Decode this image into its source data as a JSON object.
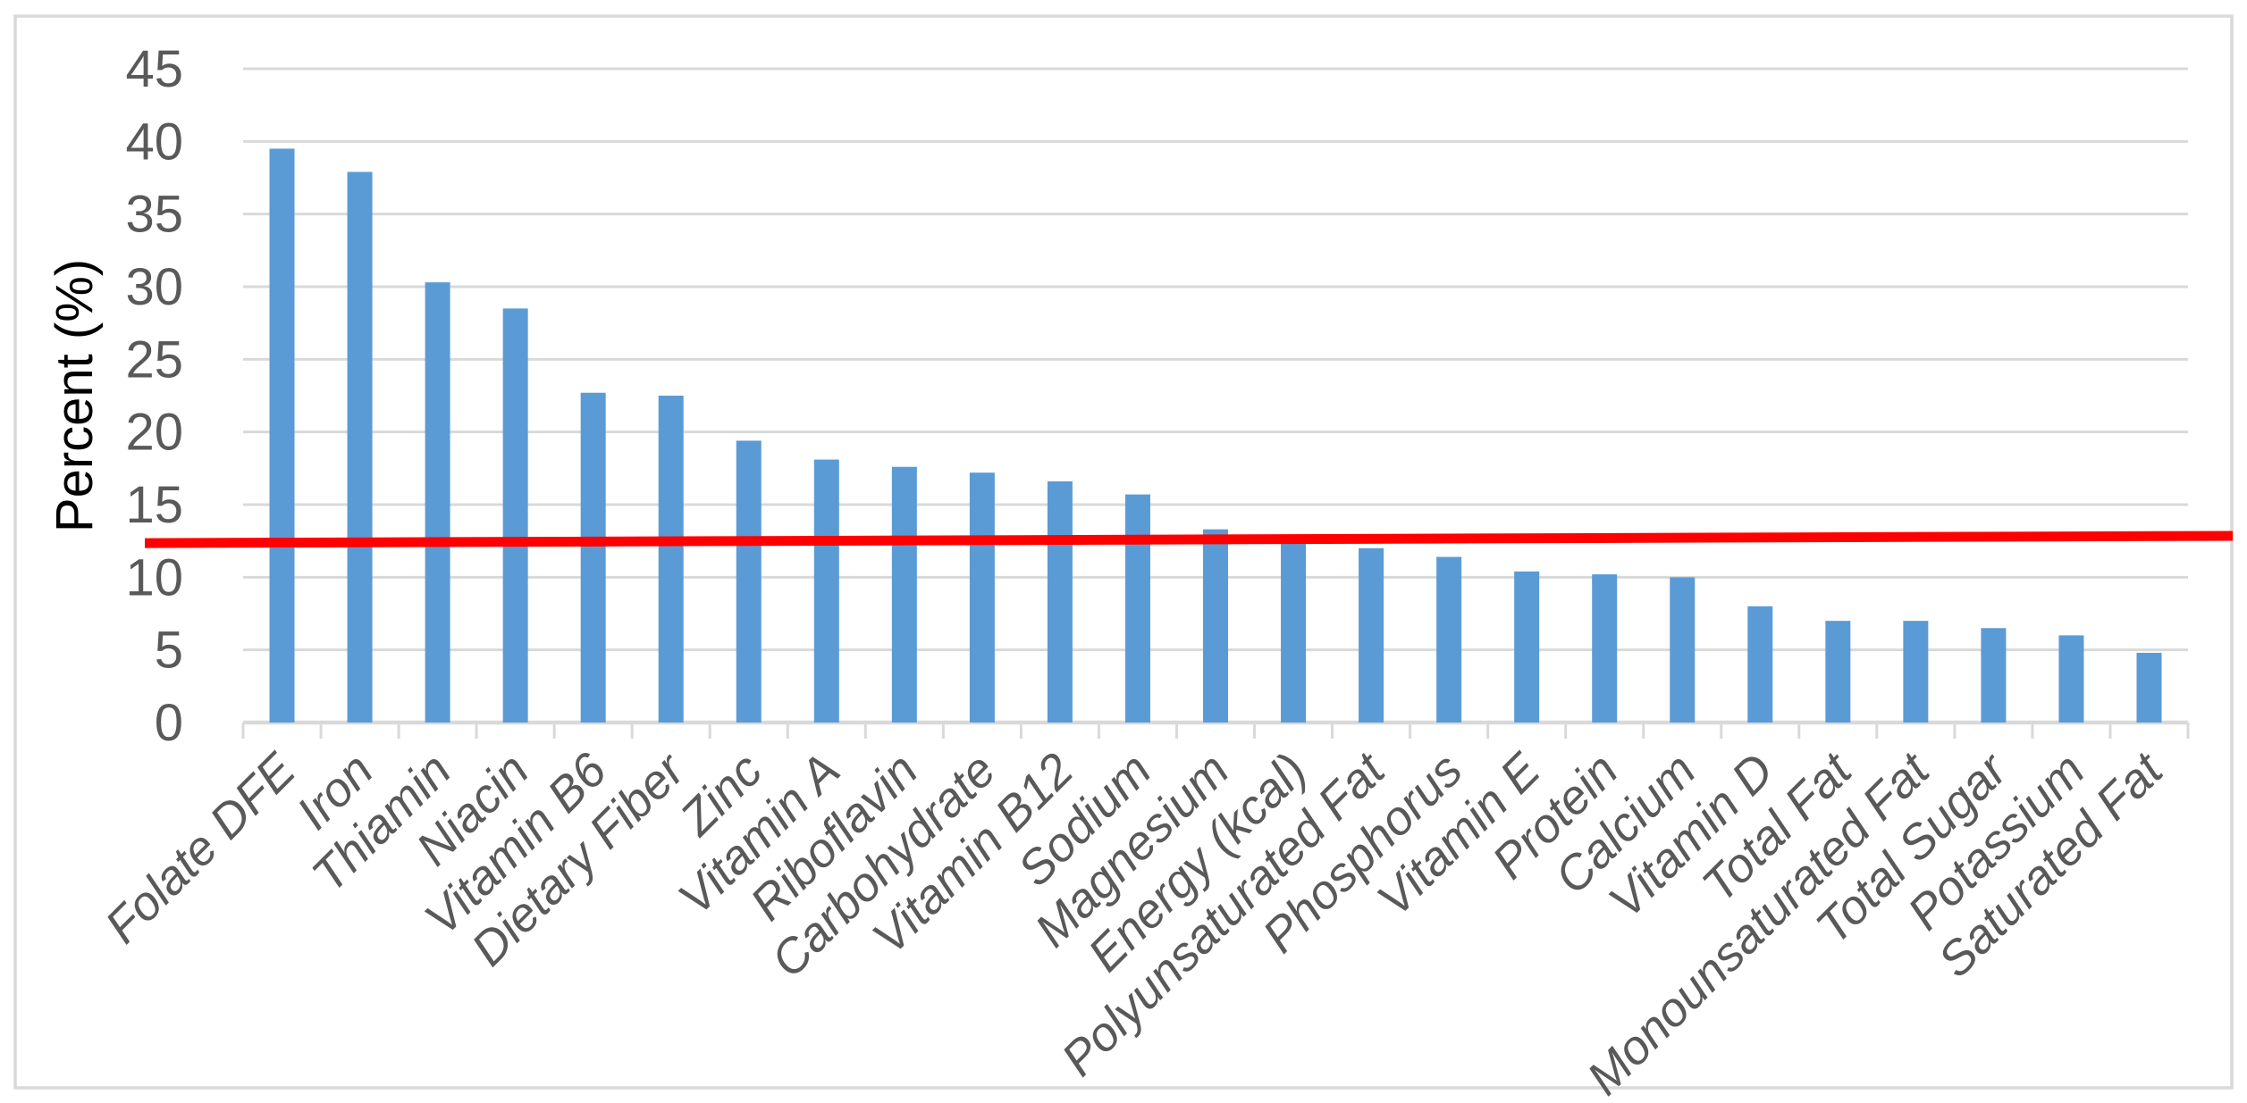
{
  "chart_data": {
    "type": "bar",
    "title": "",
    "xlabel": "",
    "ylabel": "Percent (%)",
    "ylim": [
      0,
      45
    ],
    "ytick_step": 5,
    "ytick_labels": [
      "0",
      "5",
      "10",
      "15",
      "20",
      "25",
      "30",
      "35",
      "40",
      "45"
    ],
    "grid": "horizontal",
    "legend_position": "none",
    "categories": [
      "Folate DFE",
      "Iron",
      "Thiamin",
      "Niacin",
      "Vitamin B6",
      "Dietary Fiber",
      "Zinc",
      "Vitamin A",
      "Riboflavin",
      "Carbohydrate",
      "Vitamin B12",
      "Sodium",
      "Magnesium",
      "Energy (kcal)",
      "Polyunsaturated Fat",
      "Phosphorus",
      "Vitamin E",
      "Protein",
      "Calcium",
      "Vitamin D",
      "Total Fat",
      "Monounsaturated Fat",
      "Total Sugar",
      "Potassium",
      "Saturated Fat"
    ],
    "values": [
      39.5,
      37.9,
      30.3,
      28.5,
      22.7,
      22.5,
      19.4,
      18.1,
      17.6,
      17.2,
      16.6,
      15.7,
      13.3,
      12.9,
      12.0,
      11.4,
      10.4,
      10.2,
      10.0,
      8.0,
      7.0,
      7.0,
      6.5,
      6.0,
      4.8
    ],
    "reference_line": {
      "value": 12.5,
      "left_value": 12.35,
      "right_value": 12.85,
      "color": "#FF0000"
    },
    "colors": {
      "bar": "#5B9BD5",
      "gridline": "#D9D9D9",
      "axis": "#D9D9D9",
      "tick_label": "#595959",
      "axis_title": "#000000",
      "border": "#D9D9D9",
      "background": "#FFFFFF"
    }
  }
}
